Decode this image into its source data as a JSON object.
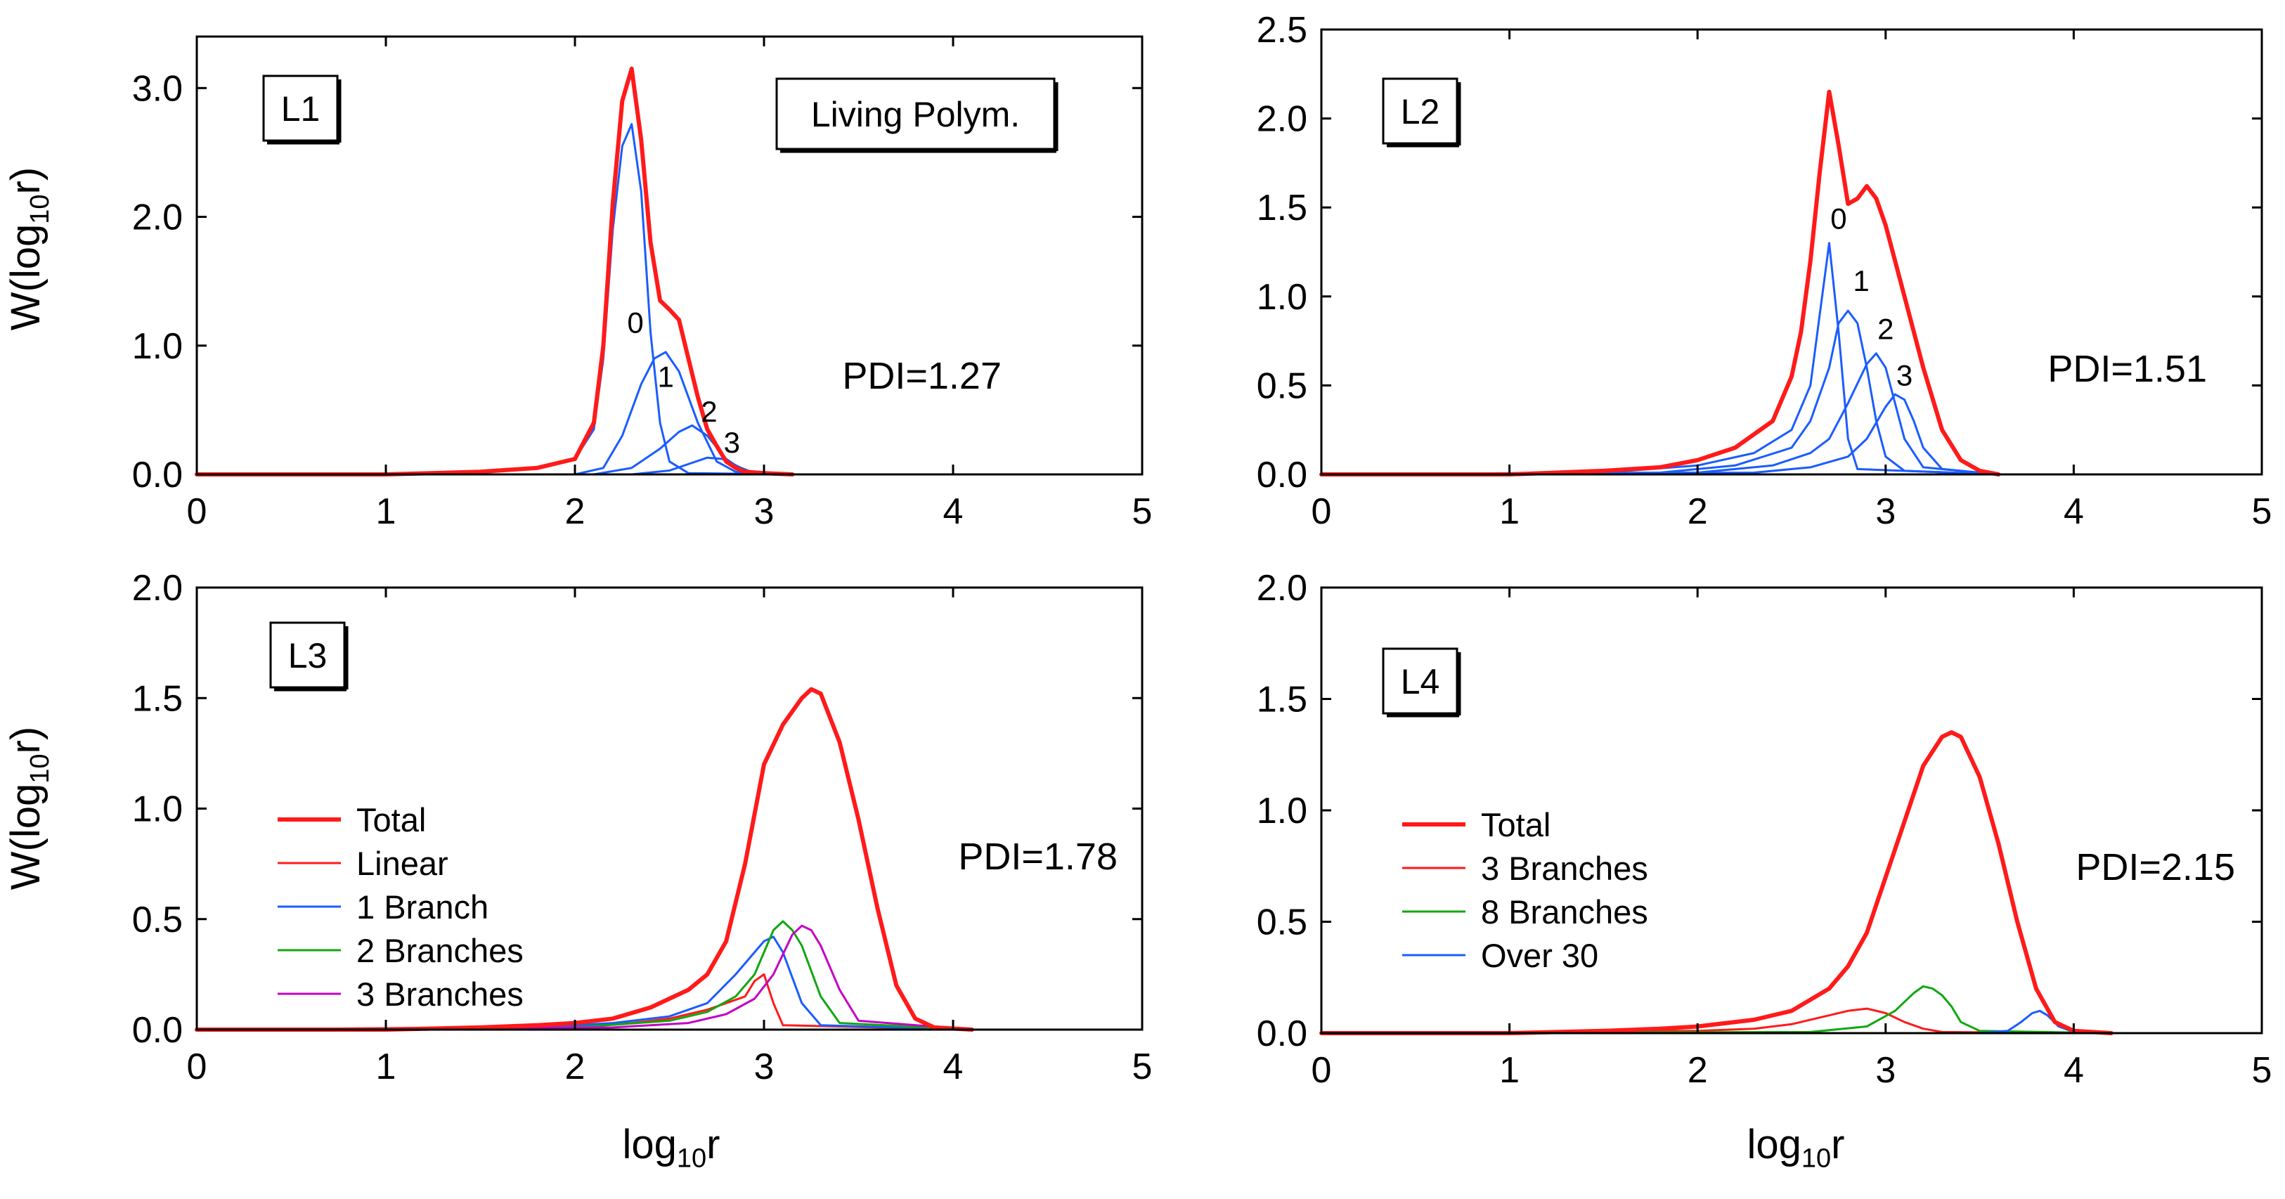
{
  "chart_data": [
    {
      "id": "L1",
      "type": "line",
      "panel_label": "L1",
      "xlabel_main": "log",
      "xlabel_sub": "10",
      "xlabel_tail": "r",
      "ylabel_main": "W(log",
      "ylabel_sub": "10",
      "ylabel_tail": "r)",
      "xlim": [
        0,
        5
      ],
      "ylim": [
        0,
        3.4
      ],
      "xticks": [
        "0",
        "1",
        "2",
        "3",
        "4",
        "5"
      ],
      "yticks": [
        0,
        1,
        2,
        3
      ],
      "ytick_labels": [
        "0.0",
        "1.0",
        "2.0",
        "3.0"
      ],
      "note_box": "Living Polym.",
      "pdi": "PDI=1.27",
      "annotations": [
        {
          "text": "0",
          "x": 2.32,
          "y": 1.1
        },
        {
          "text": "1",
          "x": 2.48,
          "y": 0.68
        },
        {
          "text": "2",
          "x": 2.71,
          "y": 0.41
        },
        {
          "text": "3",
          "x": 2.83,
          "y": 0.17
        }
      ],
      "series": [
        {
          "name": "Total",
          "color": "#ff1a1a",
          "width": 6,
          "x": [
            0,
            1.0,
            1.5,
            1.8,
            2.0,
            2.1,
            2.15,
            2.2,
            2.25,
            2.3,
            2.35,
            2.4,
            2.45,
            2.5,
            2.55,
            2.6,
            2.65,
            2.7,
            2.75,
            2.8,
            2.85,
            2.9,
            3.0,
            3.15
          ],
          "y": [
            0,
            0,
            0.02,
            0.05,
            0.12,
            0.4,
            1.0,
            2.1,
            2.9,
            3.15,
            2.6,
            1.8,
            1.35,
            1.28,
            1.2,
            0.9,
            0.6,
            0.35,
            0.22,
            0.1,
            0.05,
            0.02,
            0.01,
            0
          ]
        },
        {
          "name": "0",
          "color": "#1a5cff",
          "width": 3,
          "x": [
            0,
            1.0,
            1.5,
            1.8,
            2.0,
            2.1,
            2.15,
            2.2,
            2.25,
            2.3,
            2.35,
            2.4,
            2.45,
            2.5,
            2.6,
            3.15
          ],
          "y": [
            0,
            0,
            0.02,
            0.05,
            0.12,
            0.35,
            0.9,
            1.9,
            2.55,
            2.72,
            2.2,
            1.1,
            0.4,
            0.1,
            0.01,
            0
          ]
        },
        {
          "name": "1",
          "color": "#1a5cff",
          "width": 3,
          "x": [
            0,
            2.0,
            2.15,
            2.25,
            2.35,
            2.42,
            2.48,
            2.55,
            2.65,
            2.75,
            2.85,
            3.15
          ],
          "y": [
            0,
            0,
            0.05,
            0.3,
            0.7,
            0.9,
            0.95,
            0.8,
            0.4,
            0.1,
            0.02,
            0
          ]
        },
        {
          "name": "2",
          "color": "#1a5cff",
          "width": 3,
          "x": [
            0,
            2.1,
            2.3,
            2.45,
            2.55,
            2.62,
            2.7,
            2.8,
            2.9,
            3.15
          ],
          "y": [
            0,
            0,
            0.05,
            0.2,
            0.33,
            0.38,
            0.3,
            0.12,
            0.02,
            0
          ]
        },
        {
          "name": "3",
          "color": "#1a5cff",
          "width": 3,
          "x": [
            0,
            2.3,
            2.5,
            2.62,
            2.7,
            2.78,
            2.88,
            2.95,
            3.15
          ],
          "y": [
            0,
            0,
            0.03,
            0.09,
            0.13,
            0.12,
            0.05,
            0.01,
            0
          ]
        }
      ]
    },
    {
      "id": "L2",
      "type": "line",
      "panel_label": "L2",
      "xlabel_main": "log",
      "xlabel_sub": "10",
      "xlabel_tail": "r",
      "ylabel_main": "W(log",
      "ylabel_sub": "10",
      "ylabel_tail": "r)",
      "xlim": [
        0,
        5
      ],
      "ylim": [
        0,
        2.5
      ],
      "xticks": [
        "0",
        "1",
        "2",
        "3",
        "4",
        "5"
      ],
      "yticks": [
        0,
        0.5,
        1,
        1.5,
        2,
        2.5
      ],
      "ytick_labels": [
        "0.0",
        "0.5",
        "1.0",
        "1.5",
        "2.0",
        "2.5"
      ],
      "pdi": "PDI=1.51",
      "annotations": [
        {
          "text": "0",
          "x": 2.75,
          "y": 1.38
        },
        {
          "text": "1",
          "x": 2.87,
          "y": 1.03
        },
        {
          "text": "2",
          "x": 3.0,
          "y": 0.76
        },
        {
          "text": "3",
          "x": 3.1,
          "y": 0.5
        }
      ],
      "series": [
        {
          "name": "Total",
          "color": "#ff1a1a",
          "width": 6,
          "x": [
            0,
            1.0,
            1.5,
            1.8,
            2.0,
            2.2,
            2.4,
            2.5,
            2.55,
            2.6,
            2.65,
            2.7,
            2.75,
            2.8,
            2.85,
            2.9,
            2.95,
            3.0,
            3.1,
            3.2,
            3.3,
            3.4,
            3.5,
            3.6
          ],
          "y": [
            0,
            0,
            0.02,
            0.04,
            0.08,
            0.15,
            0.3,
            0.55,
            0.8,
            1.2,
            1.7,
            2.15,
            1.85,
            1.52,
            1.55,
            1.62,
            1.55,
            1.4,
            1.0,
            0.6,
            0.25,
            0.08,
            0.02,
            0
          ]
        },
        {
          "name": "0",
          "color": "#1a5cff",
          "width": 3,
          "x": [
            0,
            1.5,
            2.0,
            2.3,
            2.5,
            2.6,
            2.65,
            2.7,
            2.75,
            2.8,
            2.85,
            3.6
          ],
          "y": [
            0,
            0.01,
            0.05,
            0.12,
            0.25,
            0.5,
            0.9,
            1.3,
            0.8,
            0.2,
            0.03,
            0
          ]
        },
        {
          "name": "1",
          "color": "#1a5cff",
          "width": 3,
          "x": [
            0,
            1.8,
            2.2,
            2.5,
            2.6,
            2.7,
            2.75,
            2.8,
            2.85,
            2.9,
            2.95,
            3.0,
            3.1,
            3.6
          ],
          "y": [
            0,
            0.01,
            0.05,
            0.15,
            0.3,
            0.6,
            0.85,
            0.92,
            0.85,
            0.6,
            0.3,
            0.1,
            0.02,
            0
          ]
        },
        {
          "name": "2",
          "color": "#1a5cff",
          "width": 3,
          "x": [
            0,
            2.0,
            2.4,
            2.6,
            2.7,
            2.8,
            2.9,
            2.95,
            3.0,
            3.05,
            3.1,
            3.2,
            3.6
          ],
          "y": [
            0,
            0.01,
            0.05,
            0.12,
            0.2,
            0.4,
            0.62,
            0.68,
            0.6,
            0.4,
            0.2,
            0.04,
            0
          ]
        },
        {
          "name": "3",
          "color": "#1a5cff",
          "width": 3,
          "x": [
            0,
            2.3,
            2.6,
            2.8,
            2.9,
            3.0,
            3.05,
            3.1,
            3.15,
            3.2,
            3.3,
            3.6
          ],
          "y": [
            0,
            0.01,
            0.04,
            0.1,
            0.2,
            0.38,
            0.45,
            0.42,
            0.3,
            0.15,
            0.03,
            0
          ]
        }
      ]
    },
    {
      "id": "L3",
      "type": "line",
      "panel_label": "L3",
      "xlabel_main": "log",
      "xlabel_sub": "10",
      "xlabel_tail": "r",
      "ylabel_main": "W(log",
      "ylabel_sub": "10",
      "ylabel_tail": "r)",
      "xlim": [
        0,
        5
      ],
      "ylim": [
        0,
        2.0
      ],
      "xticks": [
        "0",
        "1",
        "2",
        "3",
        "4",
        "5"
      ],
      "yticks": [
        0,
        0.5,
        1,
        1.5,
        2
      ],
      "ytick_labels": [
        "0.0",
        "0.5",
        "1.0",
        "1.5",
        "2.0"
      ],
      "pdi": "PDI=1.78",
      "legend": [
        {
          "label": "Total",
          "color": "#ff1a1a",
          "width": 6
        },
        {
          "label": "Linear",
          "color": "#ff1a1a",
          "width": 3
        },
        {
          "label": "1 Branch",
          "color": "#1a5cff",
          "width": 3
        },
        {
          "label": "2 Branches",
          "color": "#10a810",
          "width": 3
        },
        {
          "label": "3 Branches",
          "color": "#c400c4",
          "width": 3
        }
      ],
      "series": [
        {
          "name": "Total",
          "color": "#ff1a1a",
          "width": 6,
          "x": [
            0,
            1.0,
            1.5,
            1.8,
            2.0,
            2.2,
            2.4,
            2.6,
            2.7,
            2.8,
            2.9,
            3.0,
            3.1,
            3.2,
            3.25,
            3.3,
            3.4,
            3.5,
            3.6,
            3.7,
            3.8,
            3.9,
            4.1
          ],
          "y": [
            0,
            0,
            0.01,
            0.02,
            0.03,
            0.05,
            0.1,
            0.18,
            0.25,
            0.4,
            0.75,
            1.2,
            1.38,
            1.5,
            1.54,
            1.52,
            1.3,
            0.95,
            0.55,
            0.2,
            0.05,
            0.01,
            0
          ]
        },
        {
          "name": "Linear",
          "color": "#ff1a1a",
          "width": 3,
          "x": [
            0,
            1.5,
            2.0,
            2.3,
            2.5,
            2.6,
            2.7,
            2.8,
            2.9,
            2.95,
            3.0,
            3.05,
            3.1,
            4.1
          ],
          "y": [
            0,
            0.01,
            0.02,
            0.03,
            0.05,
            0.07,
            0.09,
            0.12,
            0.15,
            0.22,
            0.25,
            0.12,
            0.02,
            0
          ]
        },
        {
          "name": "1 Branch",
          "color": "#1a5cff",
          "width": 3,
          "x": [
            0,
            1.8,
            2.2,
            2.5,
            2.7,
            2.85,
            2.95,
            3.0,
            3.05,
            3.1,
            3.2,
            3.3,
            4.1
          ],
          "y": [
            0,
            0.01,
            0.03,
            0.06,
            0.12,
            0.25,
            0.35,
            0.4,
            0.42,
            0.35,
            0.12,
            0.02,
            0
          ]
        },
        {
          "name": "2 Branches",
          "color": "#10a810",
          "width": 3,
          "x": [
            0,
            2.0,
            2.5,
            2.7,
            2.85,
            2.95,
            3.05,
            3.1,
            3.15,
            3.2,
            3.3,
            3.4,
            4.1
          ],
          "y": [
            0,
            0.01,
            0.04,
            0.08,
            0.15,
            0.25,
            0.45,
            0.49,
            0.45,
            0.38,
            0.15,
            0.03,
            0
          ]
        },
        {
          "name": "3 Branches",
          "color": "#c400c4",
          "width": 3,
          "x": [
            0,
            2.2,
            2.6,
            2.8,
            2.95,
            3.05,
            3.15,
            3.2,
            3.25,
            3.3,
            3.4,
            3.5,
            4.1
          ],
          "y": [
            0,
            0.01,
            0.03,
            0.07,
            0.14,
            0.25,
            0.43,
            0.47,
            0.45,
            0.38,
            0.18,
            0.04,
            0
          ]
        }
      ]
    },
    {
      "id": "L4",
      "type": "line",
      "panel_label": "L4",
      "xlabel_main": "log",
      "xlabel_sub": "10",
      "xlabel_tail": "r",
      "ylabel_main": "W(log",
      "ylabel_sub": "10",
      "ylabel_tail": "r)",
      "xlim": [
        0,
        5
      ],
      "ylim": [
        0,
        2.0
      ],
      "xticks": [
        "0",
        "1",
        "2",
        "3",
        "4",
        "5"
      ],
      "yticks": [
        0,
        0.5,
        1,
        1.5,
        2
      ],
      "ytick_labels": [
        "0.0",
        "0.5",
        "1.0",
        "1.5",
        "2.0"
      ],
      "pdi": "PDI=2.15",
      "legend": [
        {
          "label": "Total",
          "color": "#ff1a1a",
          "width": 6
        },
        {
          "label": "3 Branches",
          "color": "#ff1a1a",
          "width": 3
        },
        {
          "label": "8 Branches",
          "color": "#10a810",
          "width": 3
        },
        {
          "label": "Over 30",
          "color": "#1a5cff",
          "width": 3
        }
      ],
      "series": [
        {
          "name": "Total",
          "color": "#ff1a1a",
          "width": 6,
          "x": [
            0,
            1.0,
            1.5,
            1.8,
            2.0,
            2.3,
            2.5,
            2.7,
            2.8,
            2.9,
            3.0,
            3.1,
            3.2,
            3.3,
            3.35,
            3.4,
            3.5,
            3.6,
            3.7,
            3.8,
            3.9,
            4.0,
            4.2
          ],
          "y": [
            0,
            0,
            0.01,
            0.02,
            0.03,
            0.06,
            0.1,
            0.2,
            0.3,
            0.45,
            0.7,
            0.95,
            1.2,
            1.33,
            1.35,
            1.33,
            1.15,
            0.85,
            0.5,
            0.2,
            0.05,
            0.01,
            0
          ]
        },
        {
          "name": "3 Branches",
          "color": "#ff1a1a",
          "width": 3,
          "x": [
            0,
            2.0,
            2.3,
            2.5,
            2.65,
            2.8,
            2.9,
            3.0,
            3.1,
            3.2,
            3.3,
            4.2
          ],
          "y": [
            0,
            0.01,
            0.02,
            0.04,
            0.07,
            0.1,
            0.11,
            0.09,
            0.05,
            0.02,
            0.005,
            0
          ]
        },
        {
          "name": "8 Branches",
          "color": "#10a810",
          "width": 3,
          "x": [
            0,
            2.6,
            2.9,
            3.05,
            3.15,
            3.2,
            3.25,
            3.3,
            3.35,
            3.4,
            3.5,
            4.2
          ],
          "y": [
            0,
            0.005,
            0.03,
            0.1,
            0.18,
            0.21,
            0.2,
            0.17,
            0.12,
            0.05,
            0.01,
            0
          ]
        },
        {
          "name": "Over 30",
          "color": "#1a5cff",
          "width": 3,
          "x": [
            0,
            3.5,
            3.65,
            3.72,
            3.78,
            3.82,
            3.86,
            3.92,
            4.0,
            4.2
          ],
          "y": [
            0,
            0,
            0.01,
            0.05,
            0.09,
            0.1,
            0.08,
            0.03,
            0.005,
            0
          ]
        }
      ]
    }
  ]
}
